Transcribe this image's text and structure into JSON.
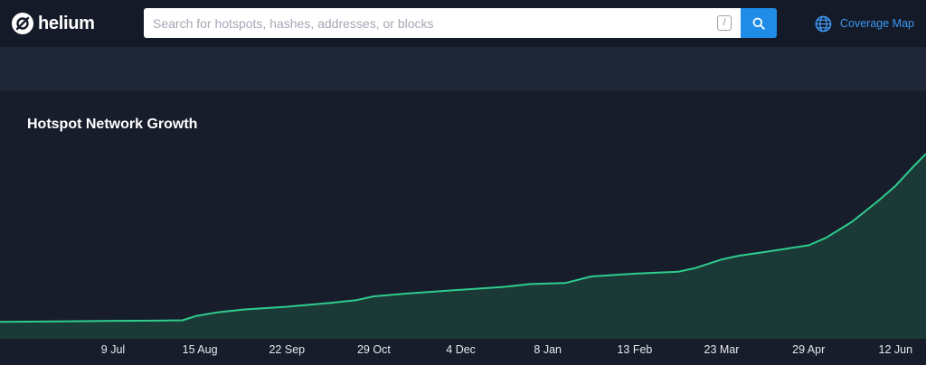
{
  "header": {
    "brand": "helium",
    "search": {
      "placeholder": "Search for hotspots, hashes, addresses, or blocks",
      "shortcut": "/"
    },
    "coverage_link": "Coverage Map",
    "icons": {
      "logo": "helium-logo-icon",
      "search": "search-icon",
      "coverage": "globe-icon"
    },
    "colors": {
      "accent": "#1f8de8",
      "link": "#3d97f2",
      "line": "#2ecc8e"
    }
  },
  "chart": {
    "title": "Hotspot Network Growth"
  },
  "chart_data": {
    "type": "area",
    "title": "Hotspot Network Growth",
    "xlabel": "",
    "ylabel": "",
    "grid": false,
    "x_tick_labels": [
      "9 Jul",
      "15 Aug",
      "22 Sep",
      "29 Oct",
      "4 Dec",
      "8 Jan",
      "13 Feb",
      "23 Mar",
      "29 Apr",
      "12 Jun"
    ],
    "x_tick_positions": [
      0.5,
      1.5,
      2.5,
      3.5,
      4.5,
      5.5,
      6.5,
      7.5,
      8.5,
      9.5
    ],
    "xlim": [
      -0.8,
      9.85
    ],
    "ylim": [
      0,
      100
    ],
    "x": [
      -0.8,
      0.0,
      0.5,
      1.0,
      1.3,
      1.45,
      1.7,
      2.0,
      2.5,
      3.0,
      3.3,
      3.5,
      3.9,
      4.5,
      5.0,
      5.3,
      5.7,
      6.0,
      6.5,
      7.0,
      7.2,
      7.5,
      7.7,
      8.0,
      8.5,
      8.7,
      9.0,
      9.3,
      9.5,
      9.7,
      9.85
    ],
    "y": [
      9.0,
      9.3,
      9.5,
      9.6,
      9.8,
      12.0,
      14.0,
      15.5,
      17.0,
      19.0,
      20.5,
      22.5,
      24.0,
      26.0,
      27.5,
      29.0,
      29.5,
      33.0,
      34.5,
      35.5,
      37.5,
      42.0,
      44.0,
      46.0,
      49.5,
      53.5,
      62.0,
      73.0,
      81.0,
      91.0,
      98.0
    ],
    "fill_color": "#1b3a37",
    "line_color": "#2ecc8e"
  }
}
